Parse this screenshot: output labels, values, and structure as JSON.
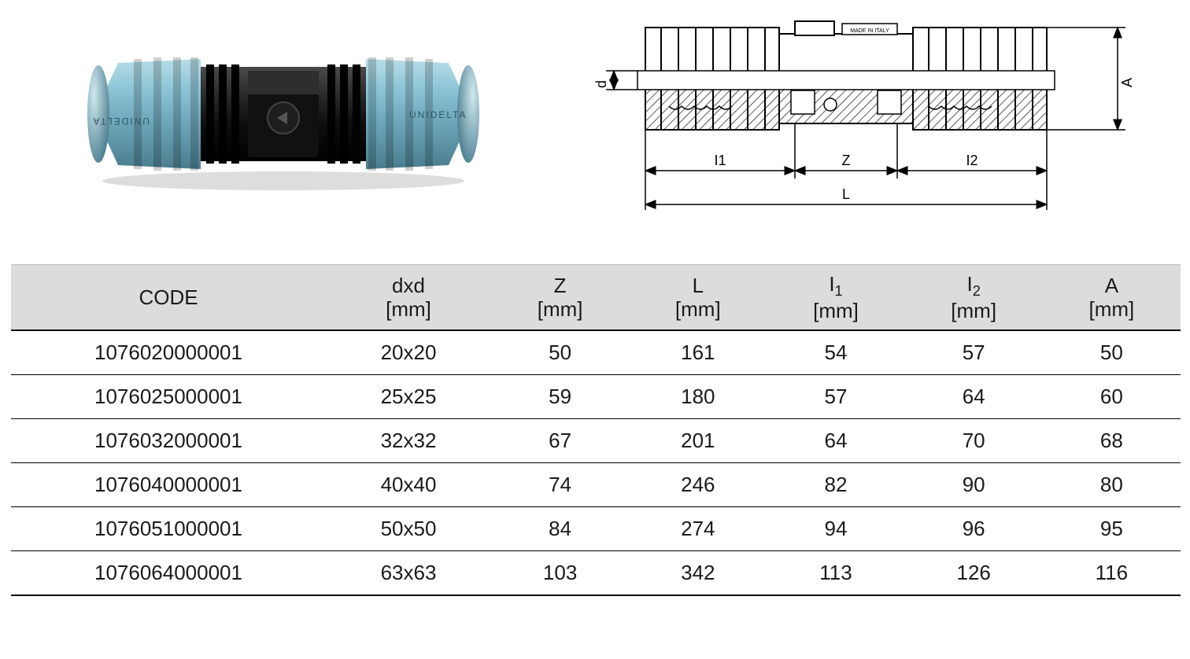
{
  "product_photo": {
    "nut_color": "#8fc7d8",
    "nut_shadow": "#5d98aa",
    "body_color": "#1a1a1a",
    "body_highlight": "#3a3a3a",
    "rib_color": "#0e0e0e",
    "brand_text": "UNIDELTA"
  },
  "diagram": {
    "labels": {
      "d": "d",
      "I1": "I1",
      "Z": "Z",
      "I2": "I2",
      "L": "L",
      "A": "A"
    },
    "made_in": "MADE IN ITALY",
    "line_color": "#000000",
    "hatch_color": "#000000"
  },
  "table": {
    "header_bg": "#dcdcdc",
    "border_color": "#000000",
    "columns": [
      {
        "label": "CODE",
        "unit": ""
      },
      {
        "label": "dxd",
        "unit": "[mm]"
      },
      {
        "label": "Z",
        "unit": "[mm]"
      },
      {
        "label": "L",
        "unit": "[mm]"
      },
      {
        "label_html": "I<sub>1</sub>",
        "label": "I1",
        "unit": "[mm]"
      },
      {
        "label_html": "I<sub>2</sub>",
        "label": "I2",
        "unit": "[mm]"
      },
      {
        "label": "A",
        "unit": "[mm]"
      }
    ],
    "rows": [
      [
        "1076020000001",
        "20x20",
        "50",
        "161",
        "54",
        "57",
        "50"
      ],
      [
        "1076025000001",
        "25x25",
        "59",
        "180",
        "57",
        "64",
        "60"
      ],
      [
        "1076032000001",
        "32x32",
        "67",
        "201",
        "64",
        "70",
        "68"
      ],
      [
        "1076040000001",
        "40x40",
        "74",
        "246",
        "82",
        "90",
        "80"
      ],
      [
        "1076051000001",
        "50x50",
        "84",
        "274",
        "94",
        "96",
        "95"
      ],
      [
        "1076064000001",
        "63x63",
        "103",
        "342",
        "113",
        "126",
        "116"
      ]
    ]
  }
}
